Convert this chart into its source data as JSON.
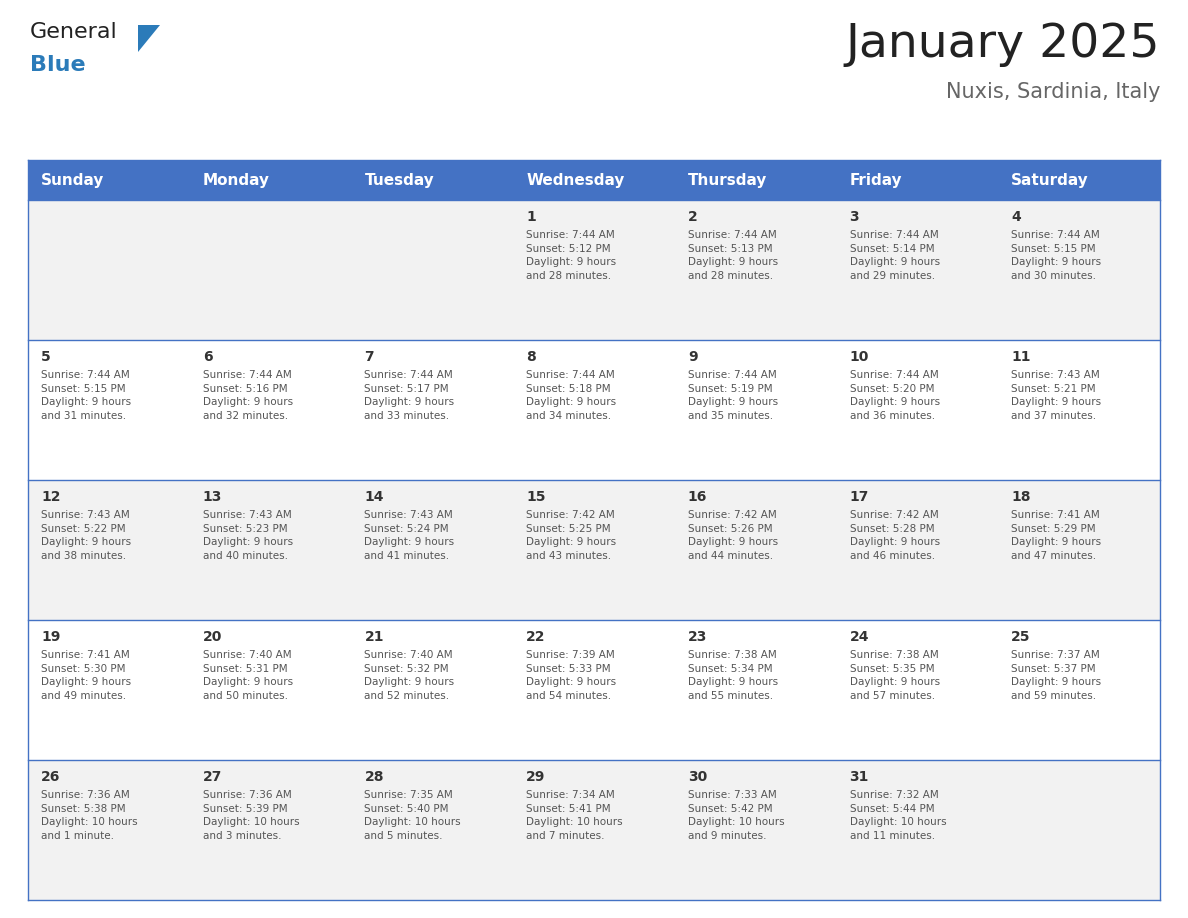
{
  "title": "January 2025",
  "subtitle": "Nuxis, Sardinia, Italy",
  "header_bg": "#4472C4",
  "header_text": "#FFFFFF",
  "day_headers": [
    "Sunday",
    "Monday",
    "Tuesday",
    "Wednesday",
    "Thursday",
    "Friday",
    "Saturday"
  ],
  "row_bg_odd": "#F2F2F2",
  "row_bg_even": "#FFFFFF",
  "cell_border": "#4472C4",
  "day_num_color": "#333333",
  "cell_text_color": "#555555",
  "weeks": [
    [
      {
        "day": "",
        "info": ""
      },
      {
        "day": "",
        "info": ""
      },
      {
        "day": "",
        "info": ""
      },
      {
        "day": "1",
        "info": "Sunrise: 7:44 AM\nSunset: 5:12 PM\nDaylight: 9 hours\nand 28 minutes."
      },
      {
        "day": "2",
        "info": "Sunrise: 7:44 AM\nSunset: 5:13 PM\nDaylight: 9 hours\nand 28 minutes."
      },
      {
        "day": "3",
        "info": "Sunrise: 7:44 AM\nSunset: 5:14 PM\nDaylight: 9 hours\nand 29 minutes."
      },
      {
        "day": "4",
        "info": "Sunrise: 7:44 AM\nSunset: 5:15 PM\nDaylight: 9 hours\nand 30 minutes."
      }
    ],
    [
      {
        "day": "5",
        "info": "Sunrise: 7:44 AM\nSunset: 5:15 PM\nDaylight: 9 hours\nand 31 minutes."
      },
      {
        "day": "6",
        "info": "Sunrise: 7:44 AM\nSunset: 5:16 PM\nDaylight: 9 hours\nand 32 minutes."
      },
      {
        "day": "7",
        "info": "Sunrise: 7:44 AM\nSunset: 5:17 PM\nDaylight: 9 hours\nand 33 minutes."
      },
      {
        "day": "8",
        "info": "Sunrise: 7:44 AM\nSunset: 5:18 PM\nDaylight: 9 hours\nand 34 minutes."
      },
      {
        "day": "9",
        "info": "Sunrise: 7:44 AM\nSunset: 5:19 PM\nDaylight: 9 hours\nand 35 minutes."
      },
      {
        "day": "10",
        "info": "Sunrise: 7:44 AM\nSunset: 5:20 PM\nDaylight: 9 hours\nand 36 minutes."
      },
      {
        "day": "11",
        "info": "Sunrise: 7:43 AM\nSunset: 5:21 PM\nDaylight: 9 hours\nand 37 minutes."
      }
    ],
    [
      {
        "day": "12",
        "info": "Sunrise: 7:43 AM\nSunset: 5:22 PM\nDaylight: 9 hours\nand 38 minutes."
      },
      {
        "day": "13",
        "info": "Sunrise: 7:43 AM\nSunset: 5:23 PM\nDaylight: 9 hours\nand 40 minutes."
      },
      {
        "day": "14",
        "info": "Sunrise: 7:43 AM\nSunset: 5:24 PM\nDaylight: 9 hours\nand 41 minutes."
      },
      {
        "day": "15",
        "info": "Sunrise: 7:42 AM\nSunset: 5:25 PM\nDaylight: 9 hours\nand 43 minutes."
      },
      {
        "day": "16",
        "info": "Sunrise: 7:42 AM\nSunset: 5:26 PM\nDaylight: 9 hours\nand 44 minutes."
      },
      {
        "day": "17",
        "info": "Sunrise: 7:42 AM\nSunset: 5:28 PM\nDaylight: 9 hours\nand 46 minutes."
      },
      {
        "day": "18",
        "info": "Sunrise: 7:41 AM\nSunset: 5:29 PM\nDaylight: 9 hours\nand 47 minutes."
      }
    ],
    [
      {
        "day": "19",
        "info": "Sunrise: 7:41 AM\nSunset: 5:30 PM\nDaylight: 9 hours\nand 49 minutes."
      },
      {
        "day": "20",
        "info": "Sunrise: 7:40 AM\nSunset: 5:31 PM\nDaylight: 9 hours\nand 50 minutes."
      },
      {
        "day": "21",
        "info": "Sunrise: 7:40 AM\nSunset: 5:32 PM\nDaylight: 9 hours\nand 52 minutes."
      },
      {
        "day": "22",
        "info": "Sunrise: 7:39 AM\nSunset: 5:33 PM\nDaylight: 9 hours\nand 54 minutes."
      },
      {
        "day": "23",
        "info": "Sunrise: 7:38 AM\nSunset: 5:34 PM\nDaylight: 9 hours\nand 55 minutes."
      },
      {
        "day": "24",
        "info": "Sunrise: 7:38 AM\nSunset: 5:35 PM\nDaylight: 9 hours\nand 57 minutes."
      },
      {
        "day": "25",
        "info": "Sunrise: 7:37 AM\nSunset: 5:37 PM\nDaylight: 9 hours\nand 59 minutes."
      }
    ],
    [
      {
        "day": "26",
        "info": "Sunrise: 7:36 AM\nSunset: 5:38 PM\nDaylight: 10 hours\nand 1 minute."
      },
      {
        "day": "27",
        "info": "Sunrise: 7:36 AM\nSunset: 5:39 PM\nDaylight: 10 hours\nand 3 minutes."
      },
      {
        "day": "28",
        "info": "Sunrise: 7:35 AM\nSunset: 5:40 PM\nDaylight: 10 hours\nand 5 minutes."
      },
      {
        "day": "29",
        "info": "Sunrise: 7:34 AM\nSunset: 5:41 PM\nDaylight: 10 hours\nand 7 minutes."
      },
      {
        "day": "30",
        "info": "Sunrise: 7:33 AM\nSunset: 5:42 PM\nDaylight: 10 hours\nand 9 minutes."
      },
      {
        "day": "31",
        "info": "Sunrise: 7:32 AM\nSunset: 5:44 PM\nDaylight: 10 hours\nand 11 minutes."
      },
      {
        "day": "",
        "info": ""
      }
    ]
  ],
  "logo_general_color": "#222222",
  "logo_blue_color": "#2B7BB9",
  "logo_triangle_color": "#2B7BB9",
  "title_color": "#222222",
  "subtitle_color": "#666666"
}
